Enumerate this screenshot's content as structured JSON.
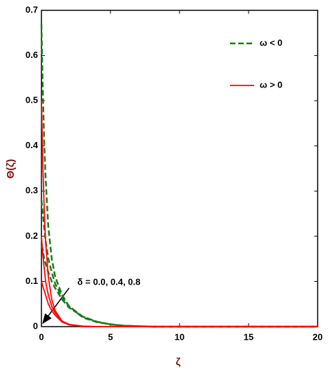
{
  "chart_data": {
    "type": "line",
    "x_label": "ζ",
    "y_label": "Θ(ζ)",
    "annotation": "δ = 0.0, 0.4, 0.8",
    "x": [
      0,
      0.1,
      0.2,
      0.3,
      0.5,
      0.75,
      1,
      1.5,
      2,
      3,
      4,
      5,
      6,
      8,
      10,
      15,
      20
    ],
    "series": [
      {
        "name": "ω < 0",
        "color": "#1a7a1a",
        "dashed": true,
        "curves": [
          [
            0.67,
            0.52,
            0.41,
            0.33,
            0.22,
            0.15,
            0.11,
            0.07,
            0.045,
            0.02,
            0.01,
            0.005,
            0.002,
            0,
            0,
            0,
            0
          ],
          [
            0.28,
            0.25,
            0.22,
            0.19,
            0.15,
            0.12,
            0.095,
            0.065,
            0.045,
            0.022,
            0.011,
            0.005,
            0.002,
            0,
            0,
            0,
            0
          ],
          [
            0.18,
            0.17,
            0.15,
            0.14,
            0.12,
            0.1,
            0.085,
            0.06,
            0.042,
            0.022,
            0.011,
            0.005,
            0.002,
            0,
            0,
            0,
            0
          ]
        ]
      },
      {
        "name": "ω > 0",
        "color": "#ff0000",
        "dashed": false,
        "curves": [
          [
            0.5,
            0.36,
            0.26,
            0.19,
            0.11,
            0.06,
            0.035,
            0.012,
            0.004,
            0,
            0,
            0,
            0,
            0,
            0,
            0,
            0
          ],
          [
            0.2,
            0.16,
            0.13,
            0.1,
            0.07,
            0.045,
            0.03,
            0.012,
            0.005,
            0.001,
            0,
            0,
            0,
            0,
            0,
            0,
            0
          ],
          [
            0.1,
            0.09,
            0.08,
            0.07,
            0.05,
            0.035,
            0.025,
            0.01,
            0.004,
            0.001,
            0,
            0,
            0,
            0,
            0,
            0,
            0
          ]
        ]
      }
    ],
    "xlim": [
      0,
      20
    ],
    "ylim": [
      0,
      0.7
    ],
    "xticks": [
      0,
      5,
      10,
      15,
      20
    ],
    "yticks": [
      0,
      0.1,
      0.2,
      0.3,
      0.4,
      0.5,
      0.6,
      0.7
    ],
    "legend": "top-right"
  }
}
